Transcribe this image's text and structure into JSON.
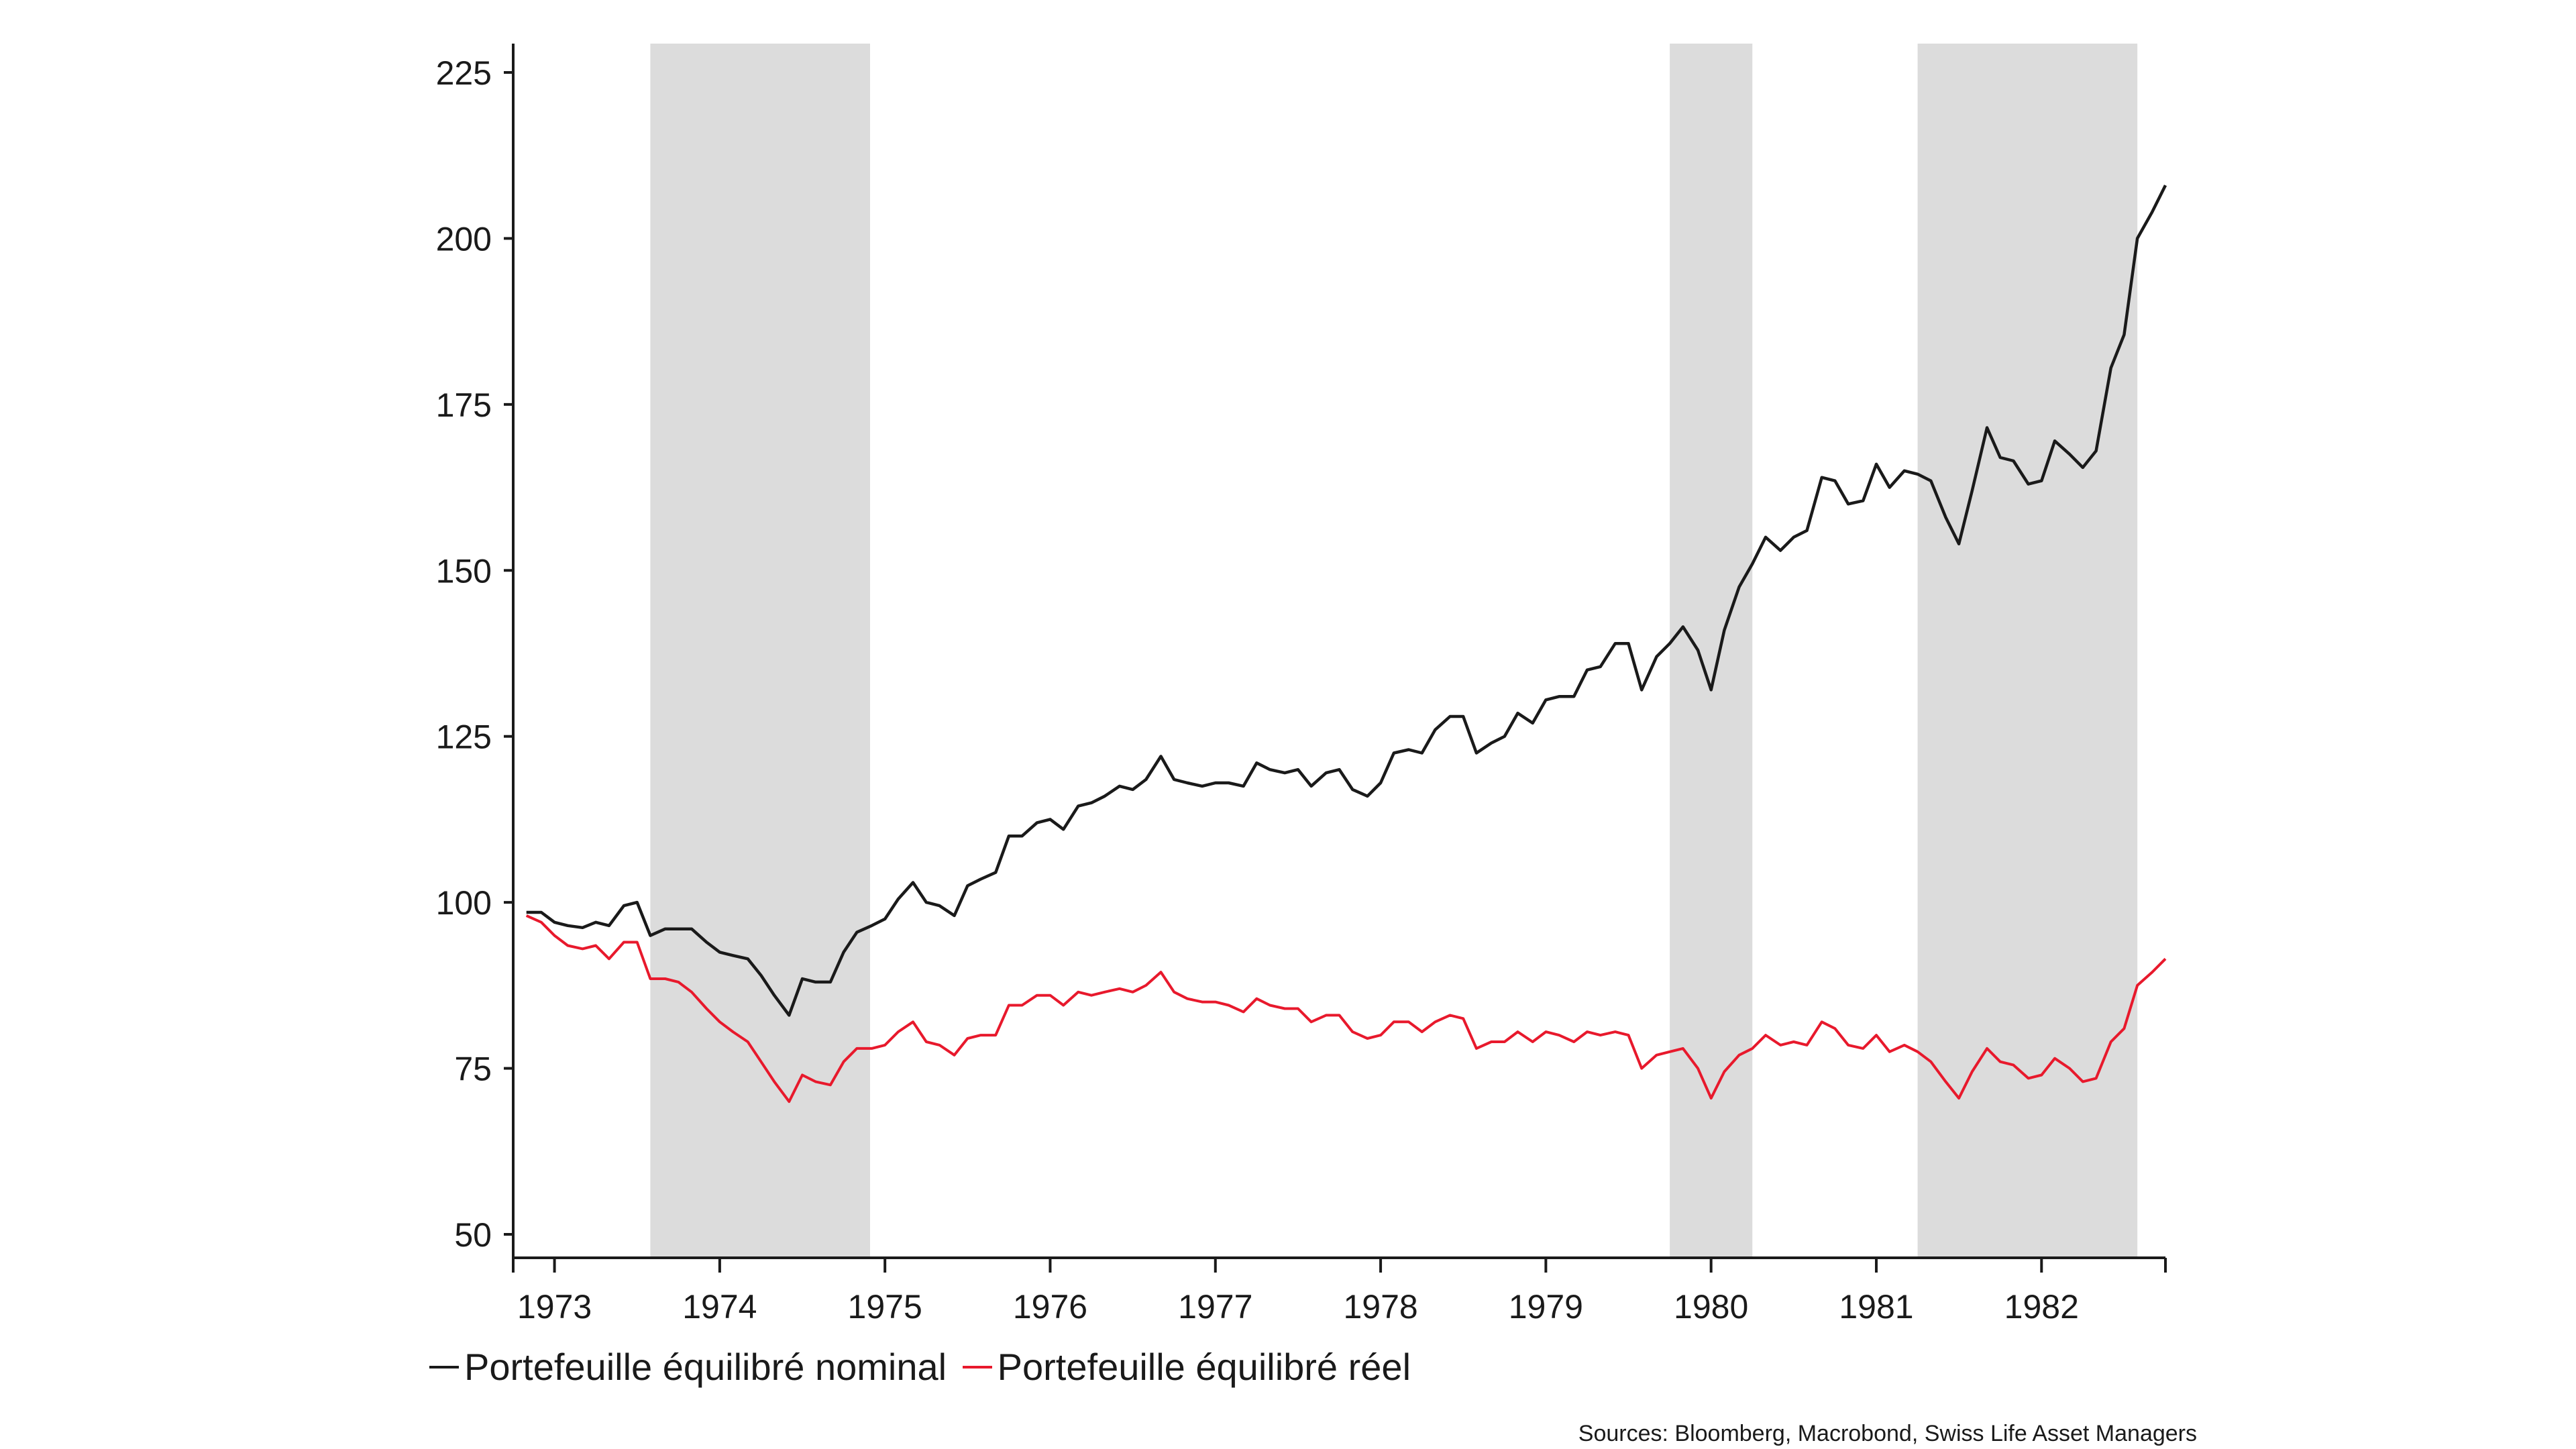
{
  "chart_data": {
    "type": "line",
    "title": "",
    "xlabel": "",
    "ylabel": "",
    "ylim": [
      50,
      225
    ],
    "yticks": [
      50,
      75,
      100,
      125,
      150,
      175,
      200,
      225
    ],
    "ytick_labels": [
      "50",
      "75",
      "100",
      "125",
      "150",
      "175",
      "200",
      "225"
    ],
    "xlim": [
      1972.75,
      1982.75
    ],
    "xticks_years": [
      1973,
      1974,
      1975,
      1976,
      1977,
      1978,
      1979,
      1980,
      1981,
      1982
    ],
    "xtick_labels": [
      "1973",
      "1974",
      "1975",
      "1976",
      "1977",
      "1978",
      "1979",
      "1980",
      "1981",
      "1982"
    ],
    "grid": false,
    "legend_position": "bottom-left",
    "shaded_periods": [
      {
        "start": 1973.58,
        "end": 1974.91
      },
      {
        "start": 1979.75,
        "end": 1980.25
      },
      {
        "start": 1981.25,
        "end": 1982.58
      }
    ],
    "shade_color": "#dcdcdc",
    "series": [
      {
        "name": "Portefeuille équilibré nominal",
        "color": "#1a1a1a",
        "points": [
          [
            1972.83,
            98.5
          ],
          [
            1972.92,
            98.5
          ],
          [
            1973.0,
            97.0
          ],
          [
            1973.08,
            96.5
          ],
          [
            1973.17,
            96.2
          ],
          [
            1973.25,
            97.0
          ],
          [
            1973.33,
            96.5
          ],
          [
            1973.42,
            99.5
          ],
          [
            1973.5,
            100.0
          ],
          [
            1973.58,
            95.0
          ],
          [
            1973.67,
            96.0
          ],
          [
            1973.75,
            96.0
          ],
          [
            1973.83,
            96.0
          ],
          [
            1973.92,
            94.0
          ],
          [
            1974.0,
            92.5
          ],
          [
            1974.08,
            92.0
          ],
          [
            1974.17,
            91.5
          ],
          [
            1974.25,
            89.0
          ],
          [
            1974.33,
            86.0
          ],
          [
            1974.42,
            83.0
          ],
          [
            1974.5,
            88.5
          ],
          [
            1974.58,
            88.0
          ],
          [
            1974.67,
            88.0
          ],
          [
            1974.75,
            92.5
          ],
          [
            1974.83,
            95.5
          ],
          [
            1974.92,
            96.5
          ],
          [
            1975.0,
            97.5
          ],
          [
            1975.08,
            100.5
          ],
          [
            1975.17,
            103.0
          ],
          [
            1975.25,
            100.0
          ],
          [
            1975.33,
            99.5
          ],
          [
            1975.42,
            98.0
          ],
          [
            1975.5,
            102.5
          ],
          [
            1975.58,
            103.5
          ],
          [
            1975.67,
            104.5
          ],
          [
            1975.75,
            110.0
          ],
          [
            1975.83,
            110.0
          ],
          [
            1975.92,
            112.0
          ],
          [
            1976.0,
            112.5
          ],
          [
            1976.08,
            111.0
          ],
          [
            1976.17,
            114.5
          ],
          [
            1976.25,
            115.0
          ],
          [
            1976.33,
            116.0
          ],
          [
            1976.42,
            117.5
          ],
          [
            1976.5,
            117.0
          ],
          [
            1976.58,
            118.5
          ],
          [
            1976.67,
            122.0
          ],
          [
            1976.75,
            118.5
          ],
          [
            1976.83,
            118.0
          ],
          [
            1976.92,
            117.5
          ],
          [
            1977.0,
            118.0
          ],
          [
            1977.08,
            118.0
          ],
          [
            1977.17,
            117.5
          ],
          [
            1977.25,
            121.0
          ],
          [
            1977.33,
            120.0
          ],
          [
            1977.42,
            119.5
          ],
          [
            1977.5,
            120.0
          ],
          [
            1977.58,
            117.5
          ],
          [
            1977.67,
            119.5
          ],
          [
            1977.75,
            120.0
          ],
          [
            1977.83,
            117.0
          ],
          [
            1977.92,
            116.0
          ],
          [
            1978.0,
            118.0
          ],
          [
            1978.08,
            122.5
          ],
          [
            1978.17,
            123.0
          ],
          [
            1978.25,
            122.5
          ],
          [
            1978.33,
            126.0
          ],
          [
            1978.42,
            128.0
          ],
          [
            1978.5,
            128.0
          ],
          [
            1978.58,
            122.5
          ],
          [
            1978.67,
            124.0
          ],
          [
            1978.75,
            125.0
          ],
          [
            1978.83,
            128.5
          ],
          [
            1978.92,
            127.0
          ],
          [
            1979.0,
            130.5
          ],
          [
            1979.08,
            131.0
          ],
          [
            1979.17,
            131.0
          ],
          [
            1979.25,
            135.0
          ],
          [
            1979.33,
            135.5
          ],
          [
            1979.42,
            139.0
          ],
          [
            1979.5,
            139.0
          ],
          [
            1979.58,
            132.0
          ],
          [
            1979.67,
            137.0
          ],
          [
            1979.75,
            139.0
          ],
          [
            1979.83,
            141.5
          ],
          [
            1979.92,
            138.0
          ],
          [
            1980.0,
            132.0
          ],
          [
            1980.08,
            141.0
          ],
          [
            1980.17,
            147.5
          ],
          [
            1980.25,
            151.0
          ],
          [
            1980.33,
            155.0
          ],
          [
            1980.42,
            153.0
          ],
          [
            1980.5,
            155.0
          ],
          [
            1980.58,
            156.0
          ],
          [
            1980.67,
            164.0
          ],
          [
            1980.75,
            163.5
          ],
          [
            1980.83,
            160.0
          ],
          [
            1980.92,
            160.5
          ],
          [
            1981.0,
            166.0
          ],
          [
            1981.08,
            162.5
          ],
          [
            1981.17,
            165.0
          ],
          [
            1981.25,
            164.5
          ],
          [
            1981.33,
            163.5
          ],
          [
            1981.42,
            158.0
          ],
          [
            1981.5,
            154.0
          ],
          [
            1981.58,
            162.0
          ],
          [
            1981.67,
            171.5
          ],
          [
            1981.75,
            167.0
          ],
          [
            1981.83,
            166.5
          ],
          [
            1981.92,
            163.0
          ],
          [
            1982.0,
            163.5
          ],
          [
            1982.08,
            169.5
          ],
          [
            1982.17,
            167.5
          ],
          [
            1982.25,
            165.5
          ],
          [
            1982.33,
            168.0
          ],
          [
            1982.42,
            180.5
          ],
          [
            1982.5,
            185.5
          ],
          [
            1982.58,
            200.0
          ],
          [
            1982.67,
            204.0
          ],
          [
            1982.75,
            208.0
          ]
        ]
      },
      {
        "name": "Portefeuille équilibré réel",
        "color": "#e8192c",
        "points": [
          [
            1972.83,
            98.0
          ],
          [
            1972.92,
            97.0
          ],
          [
            1973.0,
            95.0
          ],
          [
            1973.08,
            93.5
          ],
          [
            1973.17,
            93.0
          ],
          [
            1973.25,
            93.5
          ],
          [
            1973.33,
            91.5
          ],
          [
            1973.42,
            94.0
          ],
          [
            1973.5,
            94.0
          ],
          [
            1973.58,
            88.5
          ],
          [
            1973.67,
            88.5
          ],
          [
            1973.75,
            88.0
          ],
          [
            1973.83,
            86.5
          ],
          [
            1973.92,
            84.0
          ],
          [
            1974.0,
            82.0
          ],
          [
            1974.08,
            80.5
          ],
          [
            1974.17,
            79.0
          ],
          [
            1974.25,
            76.0
          ],
          [
            1974.33,
            73.0
          ],
          [
            1974.42,
            70.0
          ],
          [
            1974.5,
            74.0
          ],
          [
            1974.58,
            73.0
          ],
          [
            1974.67,
            72.5
          ],
          [
            1974.75,
            76.0
          ],
          [
            1974.83,
            78.0
          ],
          [
            1974.92,
            78.0
          ],
          [
            1975.0,
            78.5
          ],
          [
            1975.08,
            80.5
          ],
          [
            1975.17,
            82.0
          ],
          [
            1975.25,
            79.0
          ],
          [
            1975.33,
            78.5
          ],
          [
            1975.42,
            77.0
          ],
          [
            1975.5,
            79.5
          ],
          [
            1975.58,
            80.0
          ],
          [
            1975.67,
            80.0
          ],
          [
            1975.75,
            84.5
          ],
          [
            1975.83,
            84.5
          ],
          [
            1975.92,
            86.0
          ],
          [
            1976.0,
            86.0
          ],
          [
            1976.08,
            84.5
          ],
          [
            1976.17,
            86.5
          ],
          [
            1976.25,
            86.0
          ],
          [
            1976.33,
            86.5
          ],
          [
            1976.42,
            87.0
          ],
          [
            1976.5,
            86.5
          ],
          [
            1976.58,
            87.5
          ],
          [
            1976.67,
            89.5
          ],
          [
            1976.75,
            86.5
          ],
          [
            1976.83,
            85.5
          ],
          [
            1976.92,
            85.0
          ],
          [
            1977.0,
            85.0
          ],
          [
            1977.08,
            84.5
          ],
          [
            1977.17,
            83.5
          ],
          [
            1977.25,
            85.5
          ],
          [
            1977.33,
            84.5
          ],
          [
            1977.42,
            84.0
          ],
          [
            1977.5,
            84.0
          ],
          [
            1977.58,
            82.0
          ],
          [
            1977.67,
            83.0
          ],
          [
            1977.75,
            83.0
          ],
          [
            1977.83,
            80.5
          ],
          [
            1977.92,
            79.5
          ],
          [
            1978.0,
            80.0
          ],
          [
            1978.08,
            82.0
          ],
          [
            1978.17,
            82.0
          ],
          [
            1978.25,
            80.5
          ],
          [
            1978.33,
            82.0
          ],
          [
            1978.42,
            83.0
          ],
          [
            1978.5,
            82.5
          ],
          [
            1978.58,
            78.0
          ],
          [
            1978.67,
            79.0
          ],
          [
            1978.75,
            79.0
          ],
          [
            1978.83,
            80.5
          ],
          [
            1978.92,
            79.0
          ],
          [
            1979.0,
            80.5
          ],
          [
            1979.08,
            80.0
          ],
          [
            1979.17,
            79.0
          ],
          [
            1979.25,
            80.5
          ],
          [
            1979.33,
            80.0
          ],
          [
            1979.42,
            80.5
          ],
          [
            1979.5,
            80.0
          ],
          [
            1979.58,
            75.0
          ],
          [
            1979.67,
            77.0
          ],
          [
            1979.75,
            77.5
          ],
          [
            1979.83,
            78.0
          ],
          [
            1979.92,
            75.0
          ],
          [
            1980.0,
            70.5
          ],
          [
            1980.08,
            74.5
          ],
          [
            1980.17,
            77.0
          ],
          [
            1980.25,
            78.0
          ],
          [
            1980.33,
            80.0
          ],
          [
            1980.42,
            78.5
          ],
          [
            1980.5,
            79.0
          ],
          [
            1980.58,
            78.5
          ],
          [
            1980.67,
            82.0
          ],
          [
            1980.75,
            81.0
          ],
          [
            1980.83,
            78.5
          ],
          [
            1980.92,
            78.0
          ],
          [
            1981.0,
            80.0
          ],
          [
            1981.08,
            77.5
          ],
          [
            1981.17,
            78.5
          ],
          [
            1981.25,
            77.5
          ],
          [
            1981.33,
            76.0
          ],
          [
            1981.42,
            73.0
          ],
          [
            1981.5,
            70.5
          ],
          [
            1981.58,
            74.5
          ],
          [
            1981.67,
            78.0
          ],
          [
            1981.75,
            76.0
          ],
          [
            1981.83,
            75.5
          ],
          [
            1981.92,
            73.5
          ],
          [
            1982.0,
            74.0
          ],
          [
            1982.08,
            76.5
          ],
          [
            1982.17,
            75.0
          ],
          [
            1982.25,
            73.0
          ],
          [
            1982.33,
            73.5
          ],
          [
            1982.42,
            79.0
          ],
          [
            1982.5,
            81.0
          ],
          [
            1982.58,
            87.5
          ],
          [
            1982.67,
            89.5
          ],
          [
            1982.75,
            91.5
          ]
        ]
      }
    ]
  },
  "legend": {
    "items": [
      {
        "label": "Portefeuille équilibré nominal",
        "color": "#1a1a1a"
      },
      {
        "label": "Portefeuille équilibré réel",
        "color": "#e8192c"
      }
    ]
  },
  "source_text": "Sources: Bloomberg, Macrobond, Swiss Life Asset Managers"
}
